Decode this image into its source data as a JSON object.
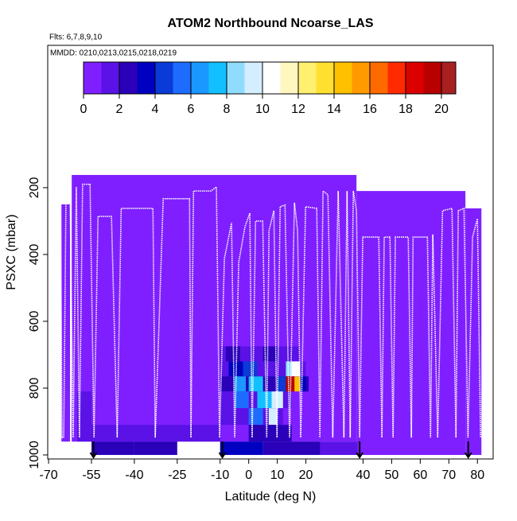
{
  "chart_data": {
    "type": "curtain",
    "title": "ATOM2 Northbound Ncoarse_LAS",
    "annotations": [
      "Flts: 6,7,8,9,10",
      "MMDD: 0210,0213,0215,0218,0219"
    ],
    "x_label": "Latitude (deg N)",
    "y_label": "PSXC (mbar)",
    "xlim": [
      -70.3,
      85.5
    ],
    "ylim": [
      1012,
      -226
    ],
    "xticks": [
      -70,
      -55,
      -40,
      -25,
      -10,
      0,
      10,
      20,
      40,
      50,
      60,
      70,
      80
    ],
    "yticks": [
      200,
      400,
      600,
      800,
      1000
    ],
    "colorbar": {
      "clim": [
        0,
        20.8
      ],
      "ticks": [
        0,
        2,
        4,
        6,
        8,
        10,
        12,
        14,
        16,
        18,
        20
      ],
      "colors": [
        "#7f1fff",
        "#5a12e6",
        "#2a00b8",
        "#0000c0",
        "#0a3ad8",
        "#1e6cff",
        "#1a98ff",
        "#12c0ff",
        "#8fdcff",
        "#d4eeff",
        "#ffffff",
        "#fff6c0",
        "#fff070",
        "#ffe030",
        "#ffc000",
        "#ff9a00",
        "#ff6a00",
        "#ff2a00",
        "#dc0000",
        "#b80000",
        "#a82020"
      ]
    },
    "cells": [
      {
        "lat": [
          -65.5,
          -62.5
        ],
        "p": [
          250,
          960
        ],
        "value": 0
      },
      {
        "lat": [
          -61.9,
          37.7
        ],
        "p": [
          162,
          960
        ],
        "value": 0
      },
      {
        "lat": [
          37.7,
          75.8
        ],
        "p": [
          210,
          1000
        ],
        "value": 0
      },
      {
        "lat": [
          75.8,
          81.4
        ],
        "p": [
          262,
          1000
        ],
        "value": 0
      },
      {
        "lat": [
          -60,
          -55
        ],
        "p": [
          810,
          960
        ],
        "value": 1
      },
      {
        "lat": [
          -10,
          18
        ],
        "p": [
          675,
          720
        ],
        "value": 1.5
      },
      {
        "lat": [
          -8,
          -3
        ],
        "p": [
          675,
          720
        ],
        "value": 2.5
      },
      {
        "lat": [
          5,
          10
        ],
        "p": [
          675,
          720
        ],
        "value": 2
      },
      {
        "lat": [
          -10,
          20
        ],
        "p": [
          720,
          765
        ],
        "value": 1.5
      },
      {
        "lat": [
          -7,
          -2
        ],
        "p": [
          720,
          765
        ],
        "value": 3
      },
      {
        "lat": [
          -2,
          3
        ],
        "p": [
          720,
          765
        ],
        "value": 4
      },
      {
        "lat": [
          13,
          15
        ],
        "p": [
          720,
          765
        ],
        "value": 8
      },
      {
        "lat": [
          15,
          18
        ],
        "p": [
          720,
          765
        ],
        "value": 10
      },
      {
        "lat": [
          -10,
          21
        ],
        "p": [
          765,
          810
        ],
        "value": 2
      },
      {
        "lat": [
          -5,
          -1
        ],
        "p": [
          765,
          810
        ],
        "value": 6
      },
      {
        "lat": [
          0,
          5
        ],
        "p": [
          765,
          810
        ],
        "value": 7
      },
      {
        "lat": [
          10,
          13
        ],
        "p": [
          765,
          810
        ],
        "value": 4
      },
      {
        "lat": [
          13,
          16
        ],
        "p": [
          765,
          810
        ],
        "value": 19
      },
      {
        "lat": [
          16,
          18
        ],
        "p": [
          765,
          810
        ],
        "value": 14
      },
      {
        "lat": [
          18,
          20
        ],
        "p": [
          765,
          810
        ],
        "value": 3
      },
      {
        "lat": [
          -10,
          15
        ],
        "p": [
          810,
          860
        ],
        "value": 1.5
      },
      {
        "lat": [
          -5,
          0
        ],
        "p": [
          810,
          860
        ],
        "value": 5
      },
      {
        "lat": [
          3,
          8
        ],
        "p": [
          810,
          860
        ],
        "value": 7
      },
      {
        "lat": [
          8,
          12
        ],
        "p": [
          810,
          860
        ],
        "value": 9
      },
      {
        "lat": [
          -10,
          12
        ],
        "p": [
          860,
          910
        ],
        "value": 1.5
      },
      {
        "lat": [
          0,
          5
        ],
        "p": [
          860,
          910
        ],
        "value": 5
      },
      {
        "lat": [
          7,
          10
        ],
        "p": [
          860,
          910
        ],
        "value": 9
      },
      {
        "lat": [
          -55,
          -10
        ],
        "p": [
          910,
          960
        ],
        "value": 1.5
      },
      {
        "lat": [
          0,
          15
        ],
        "p": [
          910,
          960
        ],
        "value": 2
      },
      {
        "lat": [
          -55,
          -40
        ],
        "p": [
          960,
          1000
        ],
        "value": 2
      },
      {
        "lat": [
          -40,
          -25
        ],
        "p": [
          960,
          1000
        ],
        "value": 2.5
      },
      {
        "lat": [
          -10,
          5
        ],
        "p": [
          960,
          1000
        ],
        "value": 3
      },
      {
        "lat": [
          5,
          25
        ],
        "p": [
          960,
          1000
        ],
        "value": 2
      },
      {
        "lat": [
          25,
          38
        ],
        "p": [
          960,
          1000
        ],
        "value": 1
      }
    ],
    "track": {
      "color": "#ffffff",
      "x": [
        -65.8,
        -65.3,
        -64.7,
        -63.9,
        -62.5,
        -61.4,
        -60.3,
        -59.2,
        -58.1,
        -55.5,
        -54.1,
        -52.7,
        -48.0,
        -46.0,
        -44.6,
        -33.5,
        -32.7,
        -29.9,
        -20.7,
        -20.2,
        -19.3,
        -13.2,
        -11.3,
        -10.2,
        -8.5,
        -6.0,
        -4.9,
        -3.5,
        -1.3,
        0.4,
        1.2,
        2.4,
        4.9,
        6.3,
        7.1,
        8.8,
        9.9,
        11.0,
        12.7,
        14.3,
        16.0,
        17.1,
        18.2,
        19.9,
        23.8,
        24.9,
        26.0,
        27.7,
        29.4,
        31.3,
        33.3,
        34.4,
        35.5,
        36.6,
        37.7,
        38.8,
        39.9,
        45.5,
        46.6,
        47.4,
        49.4,
        50.5,
        51.3,
        55.8,
        56.9,
        57.5,
        62.5,
        63.6,
        64.4,
        66.1,
        67.8,
        71.1,
        72.5,
        73.3,
        75.3,
        76.7,
        78.3,
        80.0,
        81.1
      ],
      "y": [
        245,
        948,
        948,
        221,
        210,
        948,
        198,
        948,
        190,
        190,
        948,
        286,
        286,
        948,
        262,
        262,
        948,
        233,
        233,
        948,
        210,
        210,
        198,
        948,
        412,
        305,
        948,
        424,
        317,
        276,
        948,
        300,
        300,
        948,
        329,
        269,
        948,
        257,
        252,
        948,
        245,
        329,
        948,
        257,
        262,
        948,
        210,
        221,
        948,
        210,
        948,
        210,
        948,
        210,
        269,
        948,
        348,
        348,
        948,
        348,
        348,
        948,
        348,
        348,
        948,
        348,
        348,
        948,
        340,
        948,
        269,
        262,
        948,
        269,
        262,
        948,
        348,
        293,
        948
      ]
    },
    "markers": [
      -54.3,
      -9.2,
      38.8,
      76.8
    ]
  }
}
